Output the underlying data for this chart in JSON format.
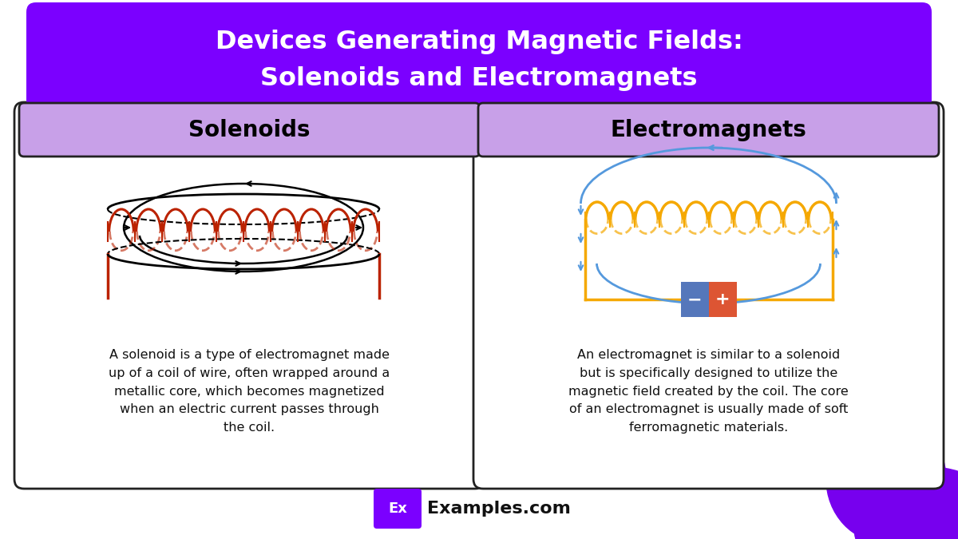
{
  "title_line1": "Devices Generating Magnetic Fields:",
  "title_line2": "Solenoids and Electromagnets",
  "title_bg_color": "#7B00FF",
  "title_text_color": "#FFFFFF",
  "bg_color": "#FFFFFF",
  "card_border_color": "#222222",
  "card_bg_color": "#FFFFFF",
  "header_bg_color": "#C8A0E8",
  "left_title": "Solenoids",
  "right_title": "Electromagnets",
  "left_text": "A solenoid is a type of electromagnet made\nup of a coil of wire, often wrapped around a\nmetallic core, which becomes magnetized\nwhen an electric current passes through\nthe coil.",
  "right_text": "An electromagnet is similar to a solenoid\nbut is specifically designed to utilize the\nmagnetic field created by the coil. The core\nof an electromagnet is usually made of soft\nferromagnetic materials.",
  "footer_text": "Examples.com",
  "footer_ex_bg": "#7B00FF",
  "footer_ex_text": "Ex",
  "purple_blob_color": "#7700EE",
  "coil_color": "#BB2200",
  "coil_color2": "#F5A800",
  "arrow_color": "#000000",
  "field_arrow_color": "#5599DD",
  "wire_color": "#F5A800",
  "bat_neg_color": "#5577BB",
  "bat_pos_color": "#DD5533"
}
